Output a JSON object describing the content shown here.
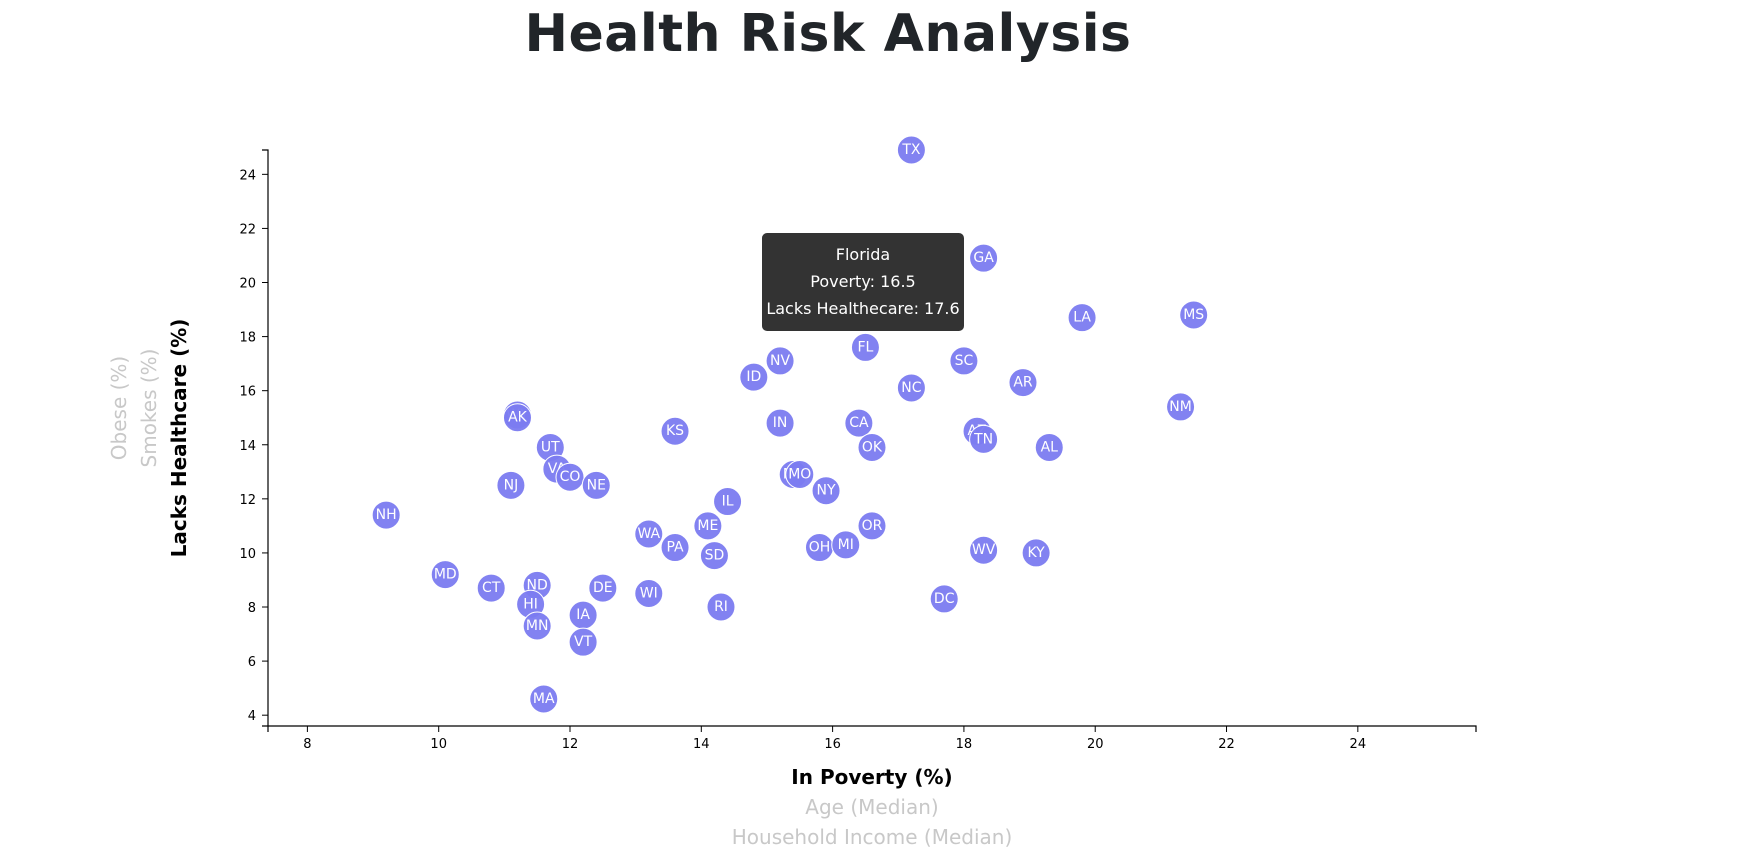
{
  "page": {
    "title": "Health Risk Analysis"
  },
  "chart_data": {
    "type": "scatter",
    "title": "Health Risk Analysis",
    "xlabel": "In Poverty (%)",
    "ylabel": "Lacks Healthcare (%)",
    "x_inactive_labels": [
      "Age (Median)",
      "Household Income (Median)"
    ],
    "y_inactive_labels": [
      "Smokes (%)",
      "Obese (%)"
    ],
    "xlim": [
      7.4,
      25.8
    ],
    "ylim": [
      3.6,
      24.9
    ],
    "x_ticks": [
      8,
      10,
      12,
      14,
      16,
      18,
      20,
      22,
      24
    ],
    "y_ticks": [
      4,
      6,
      8,
      10,
      12,
      14,
      16,
      18,
      20,
      22,
      24
    ],
    "grid": false,
    "marker_color": "#7B7BF0",
    "points": [
      {
        "label": "TX",
        "x": 17.2,
        "y": 24.9
      },
      {
        "label": "GA",
        "x": 18.3,
        "y": 20.9
      },
      {
        "label": "LA",
        "x": 19.8,
        "y": 18.7
      },
      {
        "label": "MS",
        "x": 21.5,
        "y": 18.8
      },
      {
        "label": "FL",
        "x": 16.5,
        "y": 17.6
      },
      {
        "label": "NV",
        "x": 15.2,
        "y": 17.1
      },
      {
        "label": "SC",
        "x": 18.0,
        "y": 17.1
      },
      {
        "label": "ID",
        "x": 14.8,
        "y": 16.5
      },
      {
        "label": "NC",
        "x": 17.2,
        "y": 16.1
      },
      {
        "label": "AR",
        "x": 18.9,
        "y": 16.3
      },
      {
        "label": "NM",
        "x": 21.3,
        "y": 15.4
      },
      {
        "label": "WY",
        "x": 11.2,
        "y": 15.1
      },
      {
        "label": "AK",
        "x": 11.2,
        "y": 15.0
      },
      {
        "label": "KS",
        "x": 13.6,
        "y": 14.5
      },
      {
        "label": "IN",
        "x": 15.2,
        "y": 14.8
      },
      {
        "label": "CA",
        "x": 16.4,
        "y": 14.8
      },
      {
        "label": "AZ",
        "x": 18.2,
        "y": 14.5
      },
      {
        "label": "TN",
        "x": 18.3,
        "y": 14.2
      },
      {
        "label": "AL",
        "x": 19.3,
        "y": 13.9
      },
      {
        "label": "OK",
        "x": 16.6,
        "y": 13.9
      },
      {
        "label": "UT",
        "x": 11.7,
        "y": 13.9
      },
      {
        "label": "VA",
        "x": 11.8,
        "y": 13.1
      },
      {
        "label": "CO",
        "x": 12.0,
        "y": 12.8
      },
      {
        "label": "NE",
        "x": 12.4,
        "y": 12.5
      },
      {
        "label": "NJ",
        "x": 11.1,
        "y": 12.5
      },
      {
        "label": "MT",
        "x": 15.4,
        "y": 12.9
      },
      {
        "label": "MO",
        "x": 15.5,
        "y": 12.9
      },
      {
        "label": "NY",
        "x": 15.9,
        "y": 12.3
      },
      {
        "label": "IL",
        "x": 14.4,
        "y": 11.9
      },
      {
        "label": "NH",
        "x": 9.2,
        "y": 11.4
      },
      {
        "label": "ME",
        "x": 14.1,
        "y": 11.0
      },
      {
        "label": "OR",
        "x": 16.6,
        "y": 11.0
      },
      {
        "label": "WA",
        "x": 13.2,
        "y": 10.7
      },
      {
        "label": "PA",
        "x": 13.6,
        "y": 10.2
      },
      {
        "label": "SD",
        "x": 14.2,
        "y": 9.9
      },
      {
        "label": "OH",
        "x": 15.8,
        "y": 10.2
      },
      {
        "label": "MI",
        "x": 16.2,
        "y": 10.3
      },
      {
        "label": "WV",
        "x": 18.3,
        "y": 10.1
      },
      {
        "label": "KY",
        "x": 19.1,
        "y": 10.0
      },
      {
        "label": "MD",
        "x": 10.1,
        "y": 9.2
      },
      {
        "label": "CT",
        "x": 10.8,
        "y": 8.7
      },
      {
        "label": "ND",
        "x": 11.5,
        "y": 8.8
      },
      {
        "label": "DE",
        "x": 12.5,
        "y": 8.7
      },
      {
        "label": "WI",
        "x": 13.2,
        "y": 8.5
      },
      {
        "label": "DC",
        "x": 17.7,
        "y": 8.3
      },
      {
        "label": "HI",
        "x": 11.4,
        "y": 8.1
      },
      {
        "label": "RI",
        "x": 14.3,
        "y": 8.0
      },
      {
        "label": "IA",
        "x": 12.2,
        "y": 7.7
      },
      {
        "label": "MN",
        "x": 11.5,
        "y": 7.3
      },
      {
        "label": "VT",
        "x": 12.2,
        "y": 6.7
      },
      {
        "label": "MA",
        "x": 11.6,
        "y": 4.6
      }
    ]
  },
  "tooltip": {
    "state": "Florida",
    "poverty_text": "Poverty: 16.5",
    "healthcare_text": "Lacks Healthecare: 17.6"
  }
}
